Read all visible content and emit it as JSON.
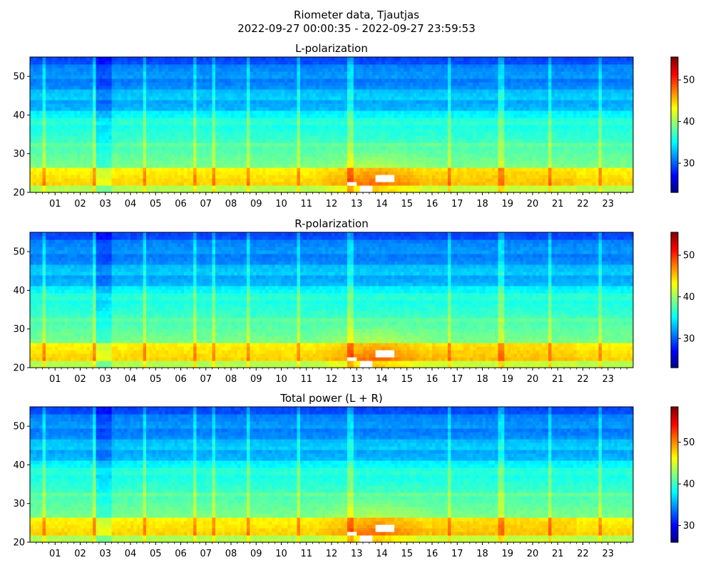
{
  "figure": {
    "suptitle_line1": "Riometer data, Tjautjas",
    "suptitle_line2": "2022-09-27 00:00:35 - 2022-09-27 23:59:53"
  },
  "chart_data": [
    {
      "type": "heatmap",
      "title": "L-polarization",
      "xlabel": "",
      "ylabel": "",
      "xlim": [
        0,
        24
      ],
      "ylim": [
        20,
        55
      ],
      "x_ticks": [
        "01",
        "02",
        "03",
        "04",
        "05",
        "06",
        "07",
        "08",
        "09",
        "10",
        "11",
        "12",
        "13",
        "14",
        "15",
        "16",
        "17",
        "18",
        "19",
        "20",
        "21",
        "22",
        "23"
      ],
      "y_ticks": [
        20,
        30,
        40,
        50
      ],
      "colormap": "jet",
      "colorbar": {
        "range": [
          23,
          55.5
        ],
        "ticks": [
          30,
          40,
          50
        ]
      },
      "colors": {
        "low": "#00007f",
        "mid": "#7fff7f",
        "high": "#7f0000"
      }
    },
    {
      "type": "heatmap",
      "title": "R-polarization",
      "xlabel": "",
      "ylabel": "",
      "xlim": [
        0,
        24
      ],
      "ylim": [
        20,
        55
      ],
      "x_ticks": [
        "01",
        "02",
        "03",
        "04",
        "05",
        "06",
        "07",
        "08",
        "09",
        "10",
        "11",
        "12",
        "13",
        "14",
        "15",
        "16",
        "17",
        "18",
        "19",
        "20",
        "21",
        "22",
        "23"
      ],
      "y_ticks": [
        20,
        30,
        40,
        50
      ],
      "colormap": "jet",
      "colorbar": {
        "range": [
          23,
          55.5
        ],
        "ticks": [
          30,
          40,
          50
        ]
      },
      "colors": {
        "low": "#00007f",
        "mid": "#7fff7f",
        "high": "#7f0000"
      }
    },
    {
      "type": "heatmap",
      "title": "Total power (L + R)",
      "xlabel": "",
      "ylabel": "",
      "xlim": [
        0,
        24
      ],
      "ylim": [
        20,
        55
      ],
      "x_ticks": [
        "01",
        "02",
        "03",
        "04",
        "05",
        "06",
        "07",
        "08",
        "09",
        "10",
        "11",
        "12",
        "13",
        "14",
        "15",
        "16",
        "17",
        "18",
        "19",
        "20",
        "21",
        "22",
        "23"
      ],
      "y_ticks": [
        20,
        30,
        40,
        50
      ],
      "colormap": "jet",
      "colorbar": {
        "range": [
          26,
          58.5
        ],
        "ticks": [
          30,
          40,
          50
        ]
      },
      "colors": {
        "low": "#00007f",
        "mid": "#7fff7f",
        "high": "#7f0000"
      }
    }
  ]
}
